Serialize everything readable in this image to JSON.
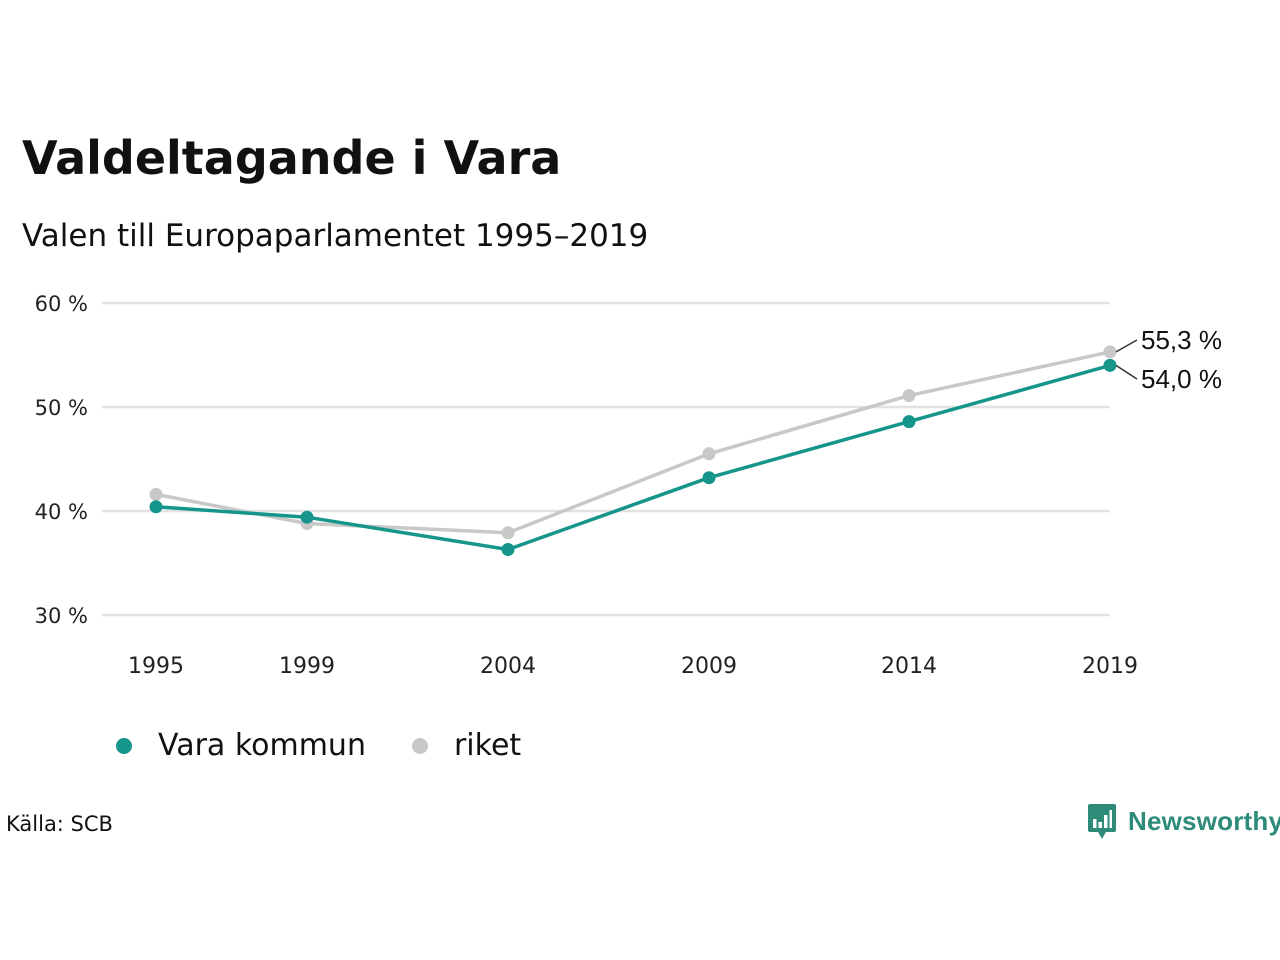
{
  "chart_data": {
    "type": "line",
    "title": "Valdeltagande i Vara",
    "subtitle": "Valen till Europaparlamentet 1995–2019",
    "categories": [
      "1995",
      "1999",
      "2004",
      "2009",
      "2014",
      "2019"
    ],
    "series": [
      {
        "name": "riket",
        "values": [
          41.6,
          38.8,
          37.9,
          45.5,
          51.1,
          55.3
        ],
        "color": "#c8c8c8"
      },
      {
        "name": "Vara kommun",
        "values": [
          40.4,
          39.4,
          36.3,
          43.2,
          48.6,
          54.0
        ],
        "color": "#16958a"
      }
    ],
    "end_labels": [
      {
        "series": "riket",
        "text": "55,3 %"
      },
      {
        "series": "Vara kommun",
        "text": "54,0 %"
      }
    ],
    "y_ticks": [
      {
        "value": 30,
        "label": "30 %"
      },
      {
        "value": 40,
        "label": "40 %"
      },
      {
        "value": 50,
        "label": "50 %"
      },
      {
        "value": 60,
        "label": "60 %"
      }
    ],
    "ylim": [
      30,
      60
    ],
    "grid": true,
    "legend": {
      "placement": "bottom-left",
      "items": [
        {
          "label": "Vara kommun",
          "color": "#16958a"
        },
        {
          "label": "riket",
          "color": "#c8c8c8"
        }
      ]
    },
    "source": "Källa: SCB"
  },
  "branding": {
    "logo_text": "Newsworthy",
    "logo_icon": "bar-chart-speech-bubble-icon",
    "color": "#2e8b7a"
  }
}
